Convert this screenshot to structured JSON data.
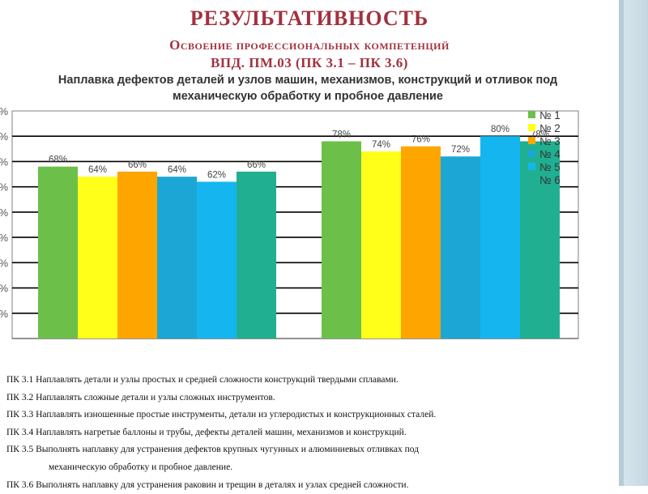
{
  "slide": {
    "title": "РЕЗУЛЬТАТИВНОСТЬ",
    "subtitle": "Освоение профессиональных компетенций",
    "subtitle2": "ВПД. ПМ.03 (ПК 3.1 – ПК 3.6)"
  },
  "chart_data": {
    "type": "bar",
    "title": "Наплавка дефектов деталей и узлов машин, механизмов, конструкций и отливок под механическую обработку и пробное давление",
    "categories": [
      "",
      ""
    ],
    "series": [
      {
        "name": "№ 1",
        "values": [
          68,
          78
        ],
        "labels": [
          "68%",
          "78%"
        ],
        "color": "#6cc04a"
      },
      {
        "name": "№ 2",
        "values": [
          64,
          74
        ],
        "labels": [
          "64%",
          "74%"
        ],
        "color": "#ffff19"
      },
      {
        "name": "№ 3",
        "values": [
          66,
          76
        ],
        "labels": [
          "66%",
          "76%"
        ],
        "color": "#ffa500"
      },
      {
        "name": "№ 4",
        "values": [
          64,
          72
        ],
        "labels": [
          "64%",
          "72%"
        ],
        "color": "#1ba6d6"
      },
      {
        "name": "№ 5",
        "values": [
          62,
          80
        ],
        "labels": [
          "62%",
          "80%"
        ],
        "color": "#15b6f0"
      },
      {
        "name": "№ 6",
        "values": [
          66,
          78
        ],
        "labels": [
          "66%",
          "78%"
        ],
        "color": "#20b091"
      }
    ],
    "ylim": [
      0,
      90
    ],
    "yticks": [
      0,
      10,
      20,
      30,
      40,
      50,
      60,
      70,
      80,
      90
    ],
    "ytick_labels": [
      "",
      "%",
      "%",
      "%",
      "%",
      "%",
      "%",
      "%",
      "%",
      "%"
    ],
    "grid": true,
    "legend": "right"
  },
  "notes": [
    {
      "text": "ПК 3.1 Наплавлять детали и узлы простых и средней сложности конструкций твердыми сплавами.",
      "indent": false
    },
    {
      "text": "ПК 3.2 Наплавлять сложные детали и узлы сложных инструментов.",
      "indent": false
    },
    {
      "text": "ПК 3.3 Наплавлять изношенные простые инструменты, детали из углеродистых и конструкционных сталей.",
      "indent": false
    },
    {
      "text": "ПК 3.4 Наплавлять нагретые баллоны и трубы, дефекты деталей машин, механизмов и конструкций.",
      "indent": false
    },
    {
      "text": "ПК 3.5 Выполнять наплавку для устранения дефектов крупных чугунных и алюминиевых отливках под",
      "indent": false
    },
    {
      "text": "механическую обработку и пробное давление.",
      "indent": true
    },
    {
      "text": "ПК 3.6 Выполнять наплавку для устранения раковин и трещин в деталях и узлах средней сложности.",
      "indent": false
    }
  ]
}
